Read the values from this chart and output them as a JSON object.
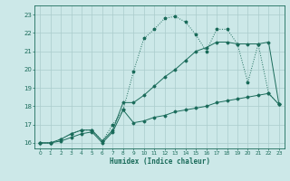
{
  "xlabel": "Humidex (Indice chaleur)",
  "bg_color": "#cce8e8",
  "grid_color": "#aacccc",
  "line_color": "#1a6b5a",
  "xlim": [
    -0.5,
    23.5
  ],
  "ylim": [
    15.7,
    23.5
  ],
  "xticks": [
    0,
    1,
    2,
    3,
    4,
    5,
    6,
    7,
    8,
    9,
    10,
    11,
    12,
    13,
    14,
    15,
    16,
    17,
    18,
    19,
    20,
    21,
    22,
    23
  ],
  "yticks": [
    16,
    17,
    18,
    19,
    20,
    21,
    22,
    23
  ],
  "curve1_x": [
    0,
    1,
    2,
    3,
    4,
    5,
    6,
    7,
    8,
    9,
    10,
    11,
    12,
    13,
    14,
    15,
    16,
    17,
    18,
    19,
    20,
    21,
    22,
    23
  ],
  "curve1_y": [
    16.0,
    16.0,
    16.2,
    16.5,
    16.7,
    16.7,
    16.1,
    17.0,
    17.8,
    19.9,
    21.7,
    22.2,
    22.8,
    22.9,
    22.6,
    21.9,
    21.0,
    22.2,
    22.2,
    21.4,
    19.3,
    21.4,
    18.7,
    18.1
  ],
  "curve2_x": [
    0,
    1,
    2,
    3,
    4,
    5,
    6,
    7,
    8,
    9,
    10,
    11,
    12,
    13,
    14,
    15,
    16,
    17,
    18,
    19,
    20,
    21,
    22,
    23
  ],
  "curve2_y": [
    16.0,
    16.0,
    16.2,
    16.5,
    16.7,
    16.7,
    16.1,
    16.7,
    18.2,
    18.2,
    18.6,
    19.1,
    19.6,
    20.0,
    20.5,
    21.0,
    21.2,
    21.5,
    21.5,
    21.4,
    21.4,
    21.4,
    21.5,
    18.1
  ],
  "curve3_x": [
    0,
    1,
    2,
    3,
    4,
    5,
    6,
    7,
    8,
    9,
    10,
    11,
    12,
    13,
    14,
    15,
    16,
    17,
    18,
    19,
    20,
    21,
    22,
    23
  ],
  "curve3_y": [
    16.0,
    16.0,
    16.1,
    16.3,
    16.5,
    16.6,
    16.0,
    16.6,
    17.8,
    17.1,
    17.2,
    17.4,
    17.5,
    17.7,
    17.8,
    17.9,
    18.0,
    18.2,
    18.3,
    18.4,
    18.5,
    18.6,
    18.7,
    18.1
  ]
}
